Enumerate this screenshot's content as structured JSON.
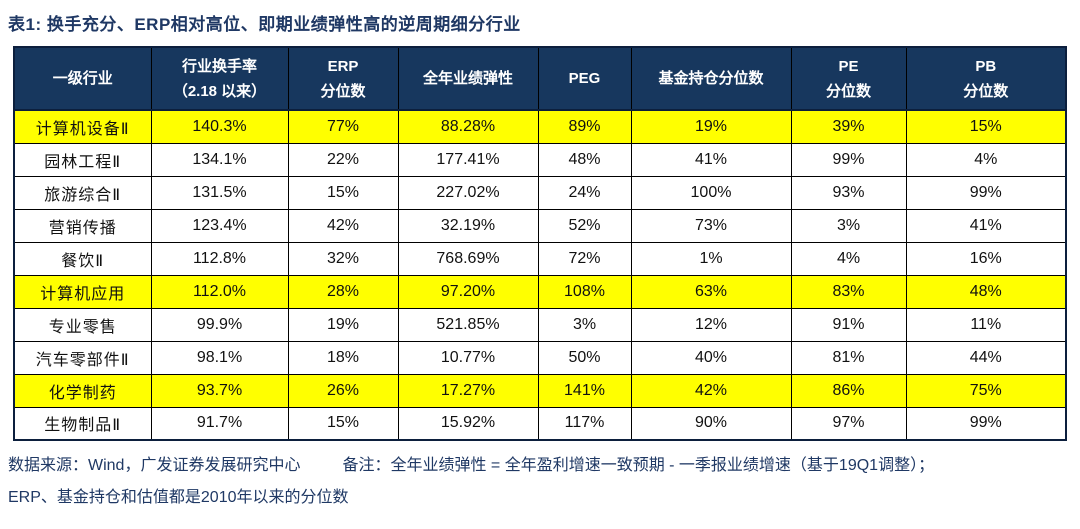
{
  "title": "表1:  换手充分、ERP相对高位、即期业绩弹性高的逆周期细分行业",
  "chart_data": {
    "type": "table",
    "title": "换手充分、ERP相对高位、即期业绩弹性高的逆周期细分行业",
    "columns": [
      "一级行业",
      "行业换手率（2.18 以来）",
      "ERP 分位数",
      "全年业绩弹性",
      "PEG",
      "基金持仓分位数",
      "PE 分位数",
      "PB 分位数"
    ],
    "header_lines": [
      [
        "一级行业"
      ],
      [
        "行业换手率",
        "（2.18 以来）"
      ],
      [
        "ERP",
        "分位数"
      ],
      [
        "全年业绩弹性"
      ],
      [
        "PEG"
      ],
      [
        "基金持仓分位数"
      ],
      [
        "PE",
        "分位数"
      ],
      [
        "PB",
        "分位数"
      ]
    ],
    "rows": [
      {
        "highlighted": true,
        "cells": [
          "计算机设备Ⅱ",
          "140.3%",
          "77%",
          "88.28%",
          "89%",
          "19%",
          "39%",
          "15%"
        ]
      },
      {
        "highlighted": false,
        "cells": [
          "园林工程Ⅱ",
          "134.1%",
          "22%",
          "177.41%",
          "48%",
          "41%",
          "99%",
          "4%"
        ]
      },
      {
        "highlighted": false,
        "cells": [
          "旅游综合Ⅱ",
          "131.5%",
          "15%",
          "227.02%",
          "24%",
          "100%",
          "93%",
          "99%"
        ]
      },
      {
        "highlighted": false,
        "cells": [
          "营销传播",
          "123.4%",
          "42%",
          "32.19%",
          "52%",
          "73%",
          "3%",
          "41%"
        ]
      },
      {
        "highlighted": false,
        "cells": [
          "餐饮Ⅱ",
          "112.8%",
          "32%",
          "768.69%",
          "72%",
          "1%",
          "4%",
          "16%"
        ]
      },
      {
        "highlighted": true,
        "cells": [
          "计算机应用",
          "112.0%",
          "28%",
          "97.20%",
          "108%",
          "63%",
          "83%",
          "48%"
        ]
      },
      {
        "highlighted": false,
        "cells": [
          "专业零售",
          "99.9%",
          "19%",
          "521.85%",
          "3%",
          "12%",
          "91%",
          "11%"
        ]
      },
      {
        "highlighted": false,
        "cells": [
          "汽车零部件Ⅱ",
          "98.1%",
          "18%",
          "10.77%",
          "50%",
          "40%",
          "81%",
          "44%"
        ]
      },
      {
        "highlighted": true,
        "cells": [
          "化学制药",
          "93.7%",
          "26%",
          "17.27%",
          "141%",
          "42%",
          "86%",
          "75%"
        ]
      },
      {
        "highlighted": false,
        "cells": [
          "生物制品Ⅱ",
          "91.7%",
          "15%",
          "15.92%",
          "117%",
          "90%",
          "97%",
          "99%"
        ]
      }
    ],
    "layout_hints": {
      "highlight_color": "#FFFF00",
      "header_bg": "#17375E",
      "header_text_color": "#FFFFFF",
      "title_text_color": "#1F3864",
      "highlighted_row_indices": [
        0,
        5,
        8
      ]
    }
  },
  "footnote": {
    "source": "数据来源：Wind，广发证券发展研究中心",
    "note": "备注：全年业绩弹性 = 全年盈利增速一致预期 - 一季报业绩增速（基于19Q1调整）；",
    "line2": "ERP、基金持仓和估值都是2010年以来的分位数"
  }
}
